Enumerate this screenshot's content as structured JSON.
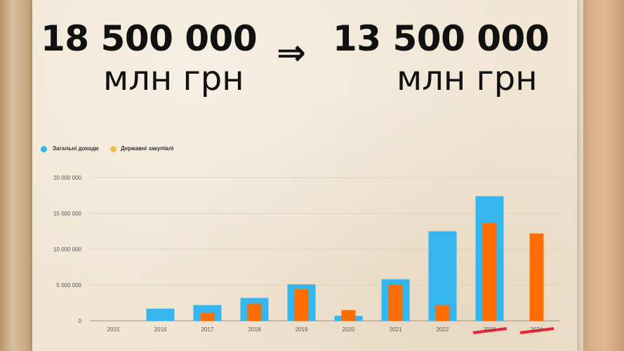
{
  "headline": {
    "from_value": "18 500 000",
    "from_unit": "млн грн",
    "arrow": "⇒",
    "to_value": "13 500 000",
    "to_unit": "млн грн"
  },
  "colors": {
    "total_income": "#35b6ee",
    "procurement": "#ff6d00",
    "legend_procurement_dot": "#f2c044",
    "strike": "#e8102a"
  },
  "chart_data": {
    "type": "bar",
    "categories": [
      "2015",
      "2016",
      "2017",
      "2018",
      "2019",
      "2020",
      "2021",
      "2022",
      "2023",
      "2024"
    ],
    "series": [
      {
        "name": "Загальні доходи",
        "values": [
          0,
          1700000,
          2200000,
          3200000,
          5100000,
          700000,
          5800000,
          12500000,
          17400000,
          0
        ]
      },
      {
        "name": "Державні закупівлі",
        "values": [
          0,
          0,
          1100000,
          2400000,
          4400000,
          1500000,
          5100000,
          2200000,
          13700000,
          12200000
        ]
      }
    ],
    "yticks": [
      "0",
      "5 000 000",
      "10 000 000",
      "15 000 000",
      "20 000 000"
    ],
    "ylim": [
      0,
      20000000
    ],
    "grid": true,
    "legend_position": "top-left",
    "struck_through_categories": [
      "2023",
      "2024"
    ]
  }
}
